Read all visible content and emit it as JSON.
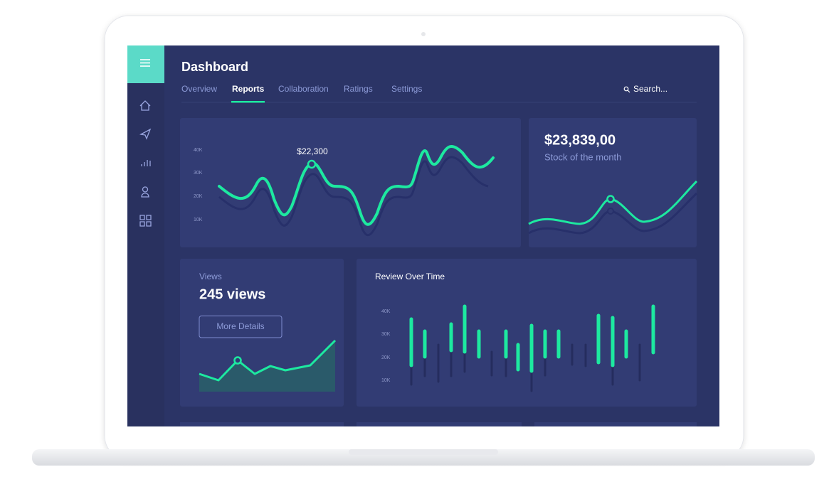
{
  "header": {
    "title": "Dashboard"
  },
  "tabs": [
    "Overview",
    "Reports",
    "Collaboration",
    "Ratings",
    "Settings"
  ],
  "search": {
    "placeholder": "Search..."
  },
  "cards": {
    "sales": {
      "ticks": [
        "40K",
        "30K",
        "20K",
        "10K"
      ],
      "marker_label": "$22,300"
    },
    "stock": {
      "value": "$23,839,00",
      "label": "Stock of the month"
    },
    "views": {
      "title": "Views",
      "value": "245 views",
      "button": "More Details"
    },
    "review": {
      "title": "Review Over Time",
      "ticks": [
        "40K",
        "30K",
        "20K",
        "10K"
      ]
    }
  }
}
